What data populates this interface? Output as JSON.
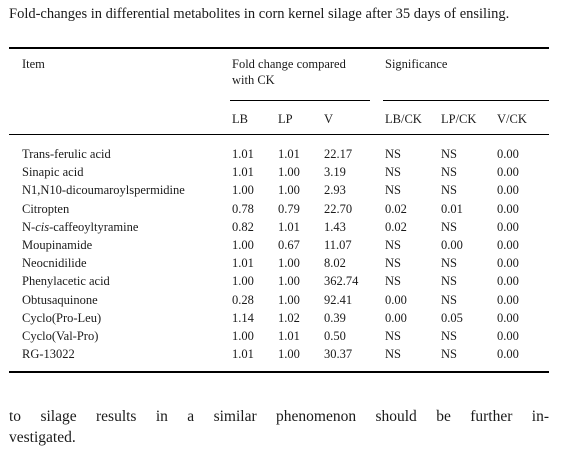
{
  "caption": "Fold-changes in differential metabolites in corn kernel silage after 35 days of ensiling.",
  "table": {
    "header": {
      "item": "Item",
      "fold_change_line1": "Fold change compared",
      "fold_change_line2": "with CK",
      "significance": "Significance",
      "sub": [
        "LB",
        "LP",
        "V",
        "LB/CK",
        "LP/CK",
        "V/CK"
      ]
    },
    "rows": [
      {
        "item": "Trans-ferulic acid",
        "LB": "1.01",
        "LP": "1.01",
        "V": "22.17",
        "LB_CK": "NS",
        "LP_CK": "NS",
        "V_CK": "0.00"
      },
      {
        "item": "Sinapic acid",
        "LB": "1.01",
        "LP": "1.00",
        "V": "3.19",
        "LB_CK": "NS",
        "LP_CK": "NS",
        "V_CK": "0.00"
      },
      {
        "item": "N1,N10-dicoumaroylspermidine",
        "LB": "1.00",
        "LP": "1.00",
        "V": "2.93",
        "LB_CK": "NS",
        "LP_CK": "NS",
        "V_CK": "0.00"
      },
      {
        "item": "Citropten",
        "LB": "0.78",
        "LP": "0.79",
        "V": "22.70",
        "LB_CK": "0.02",
        "LP_CK": "0.01",
        "V_CK": "0.00"
      },
      {
        "item_prefix": "N-",
        "item_italic": "cis",
        "item_suffix": "-caffeoyltyramine",
        "LB": "0.82",
        "LP": "1.01",
        "V": "1.43",
        "LB_CK": "0.02",
        "LP_CK": "NS",
        "V_CK": "0.00"
      },
      {
        "item": "Moupinamide",
        "LB": "1.00",
        "LP": "0.67",
        "V": "11.07",
        "LB_CK": "NS",
        "LP_CK": "0.00",
        "V_CK": "0.00"
      },
      {
        "item": "Neocnidilide",
        "LB": "1.01",
        "LP": "1.00",
        "V": "8.02",
        "LB_CK": "NS",
        "LP_CK": "NS",
        "V_CK": "0.00"
      },
      {
        "item": "Phenylacetic acid",
        "LB": "1.00",
        "LP": "1.00",
        "V": "362.74",
        "LB_CK": "NS",
        "LP_CK": "NS",
        "V_CK": "0.00"
      },
      {
        "item": "Obtusaquinone",
        "LB": "0.28",
        "LP": "1.00",
        "V": "92.41",
        "LB_CK": "0.00",
        "LP_CK": "NS",
        "V_CK": "0.00"
      },
      {
        "item": "Cyclo(Pro-Leu)",
        "LB": "1.14",
        "LP": "1.02",
        "V": "0.39",
        "LB_CK": "0.00",
        "LP_CK": "0.05",
        "V_CK": "0.00"
      },
      {
        "item": "Cyclo(Val-Pro)",
        "LB": "1.00",
        "LP": "1.01",
        "V": "0.50",
        "LB_CK": "NS",
        "LP_CK": "NS",
        "V_CK": "0.00"
      },
      {
        "item": "RG-13022",
        "LB": "1.01",
        "LP": "1.00",
        "V": "30.37",
        "LB_CK": "NS",
        "LP_CK": "NS",
        "V_CK": "0.00"
      }
    ]
  },
  "body_text": {
    "line1": "to silage results in a similar phenomenon should be further in-",
    "line2": "vestigated."
  }
}
